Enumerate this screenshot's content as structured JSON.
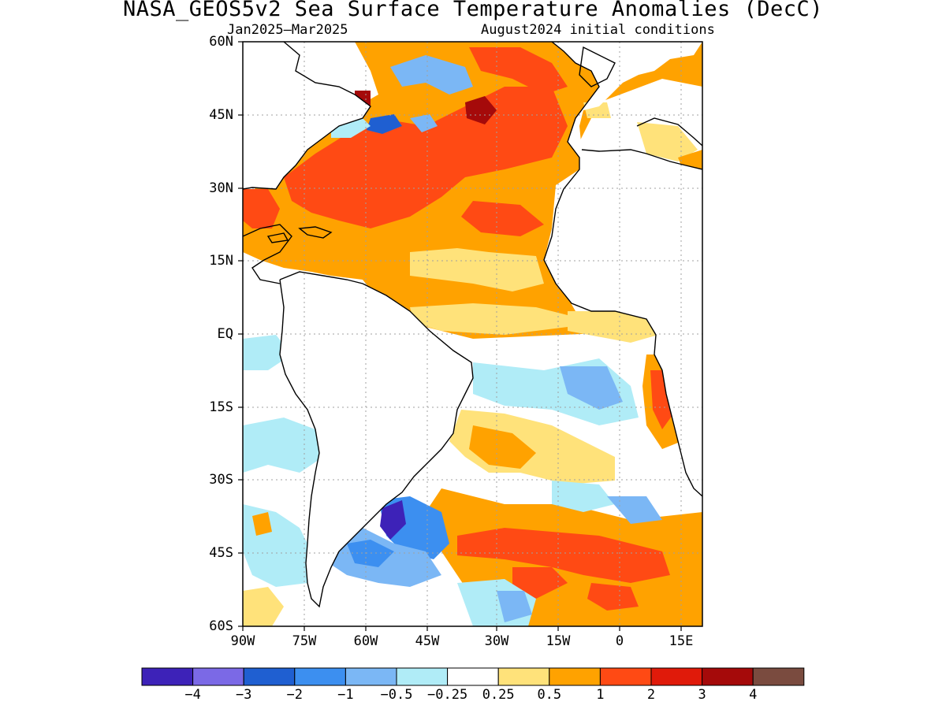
{
  "title": "NASA_GEOS5v2 Sea Surface Temperature Anomalies (DecC)",
  "subtitle_left": "Jan2025–Mar2025",
  "subtitle_right": "August2024 initial conditions",
  "lat_ticks": [
    "60N",
    "45N",
    "30N",
    "15N",
    "EQ",
    "15S",
    "30S",
    "45S",
    "60S"
  ],
  "lon_ticks": [
    "90W",
    "75W",
    "60W",
    "45W",
    "30W",
    "15W",
    "0",
    "15E"
  ],
  "legend": {
    "colors": [
      "#3d22b8",
      "#7b69e6",
      "#1f5fd1",
      "#3c8ff0",
      "#7bb7f5",
      "#b0ecf7",
      "#ffffff",
      "#ffe27a",
      "#ffa200",
      "#ff4a14",
      "#e01a0a",
      "#a50a0a",
      "#7a4b3f"
    ],
    "labels": [
      "−4",
      "−3",
      "−2",
      "−1",
      "−0.5",
      "−0.25",
      "0.25",
      "0.5",
      "1",
      "2",
      "3",
      "4"
    ]
  }
}
